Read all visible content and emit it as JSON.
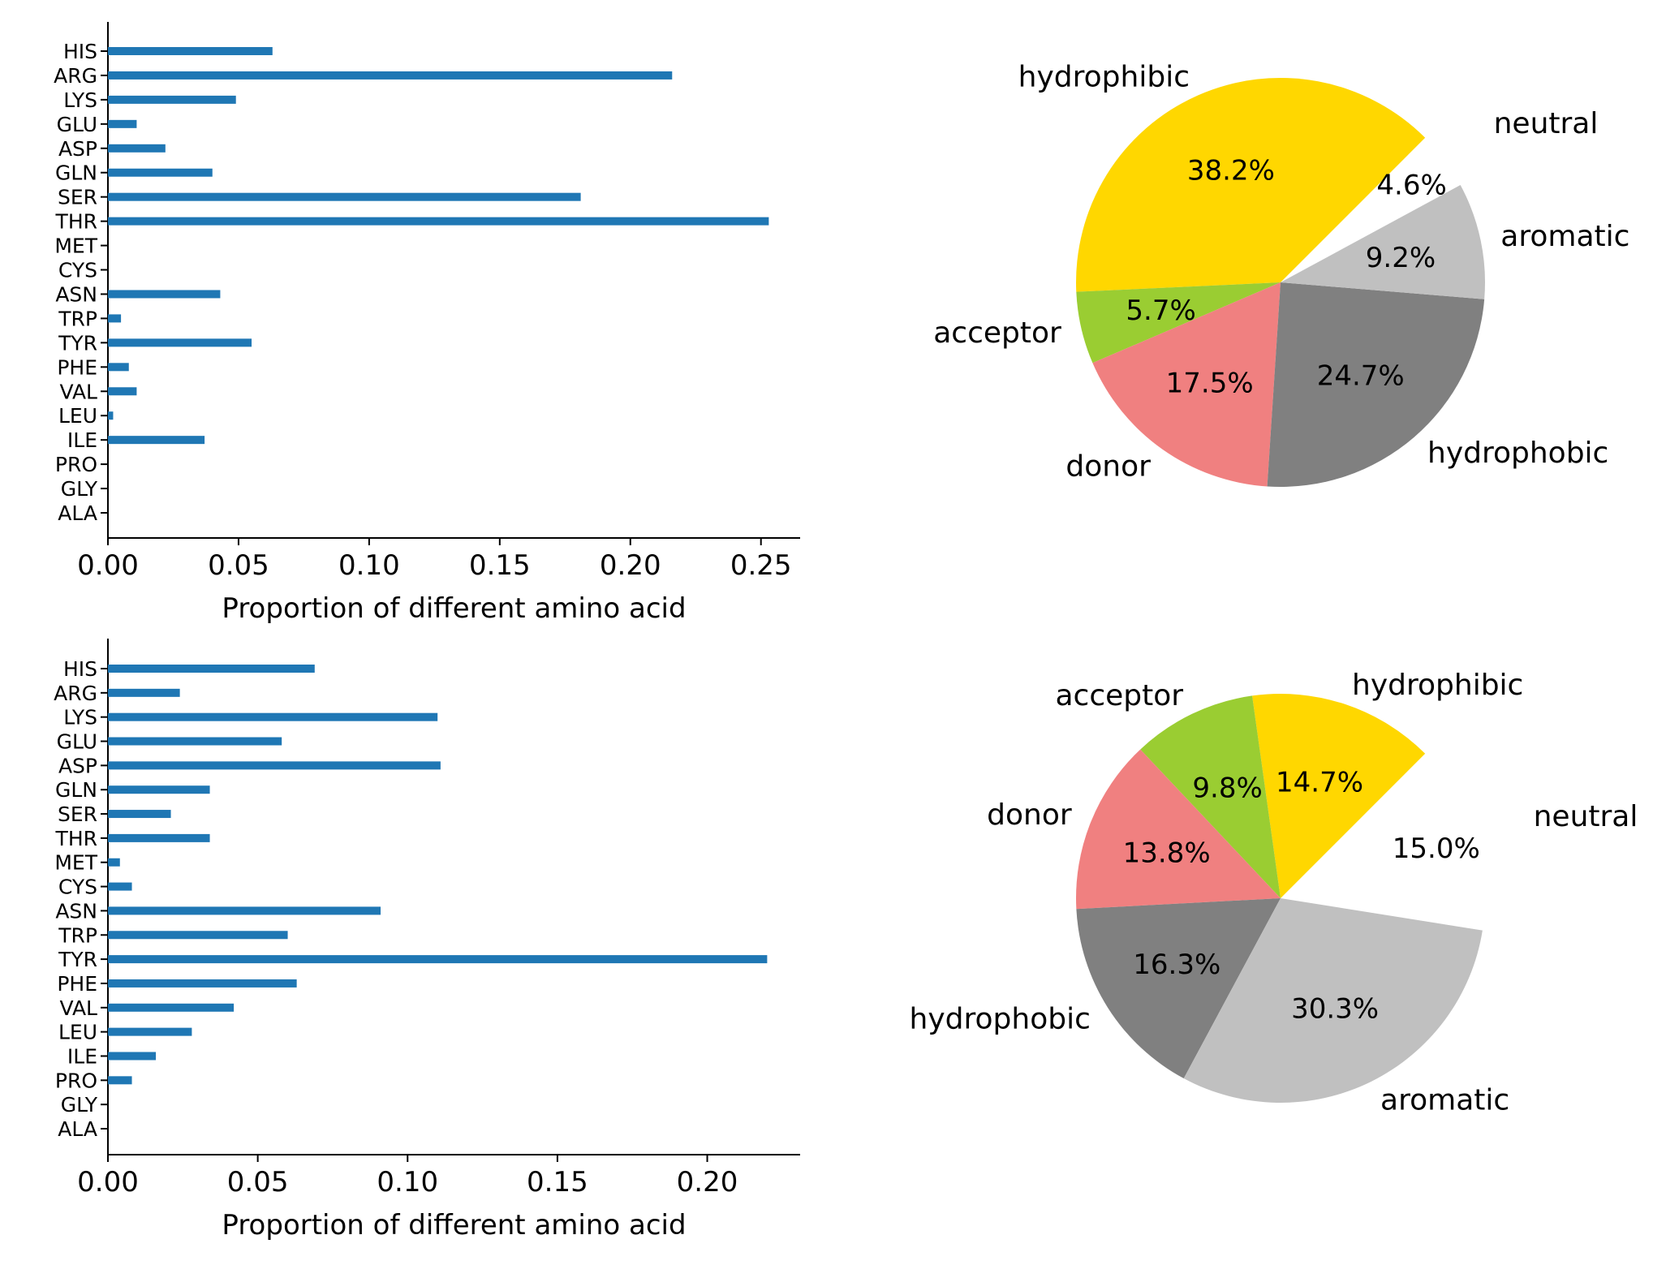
{
  "chart_data": [
    {
      "type": "bar",
      "orientation": "horizontal",
      "categories": [
        "HIS",
        "ARG",
        "LYS",
        "GLU",
        "ASP",
        "GLN",
        "SER",
        "THR",
        "MET",
        "CYS",
        "ASN",
        "TRP",
        "TYR",
        "PHE",
        "VAL",
        "LEU",
        "ILE",
        "PRO",
        "GLY",
        "ALA"
      ],
      "values": [
        0.063,
        0.216,
        0.049,
        0.011,
        0.022,
        0.04,
        0.181,
        0.253,
        0.0,
        0.0,
        0.043,
        0.005,
        0.055,
        0.008,
        0.011,
        0.002,
        0.037,
        0.0,
        0.0,
        0.0
      ],
      "xlabel": "Proportion of different amino acid",
      "xlim": [
        0,
        0.265
      ],
      "xticks": [
        "0.00",
        "0.05",
        "0.10",
        "0.15",
        "0.20",
        "0.25"
      ],
      "xtick_values": [
        0,
        0.05,
        0.1,
        0.15,
        0.2,
        0.25
      ],
      "color": "#1f77b4"
    },
    {
      "type": "pie",
      "slices": [
        {
          "label": "hydrophibic",
          "pct": "38.2%",
          "value": 38.2,
          "color": "#FFD700"
        },
        {
          "label": "acceptor",
          "pct": "5.7%",
          "value": 5.7,
          "color": "#9ACD32"
        },
        {
          "label": "donor",
          "pct": "17.5%",
          "value": 17.5,
          "color": "#F08080"
        },
        {
          "label": "hydrophobic",
          "pct": "24.7%",
          "value": 24.7,
          "color": "#808080"
        },
        {
          "label": "aromatic",
          "pct": "9.2%",
          "value": 9.2,
          "color": "#C0C0C0"
        },
        {
          "label": "neutral",
          "pct": "4.6%",
          "value": 4.6,
          "color": "#ffffff"
        }
      ]
    },
    {
      "type": "bar",
      "orientation": "horizontal",
      "categories": [
        "HIS",
        "ARG",
        "LYS",
        "GLU",
        "ASP",
        "GLN",
        "SER",
        "THR",
        "MET",
        "CYS",
        "ASN",
        "TRP",
        "TYR",
        "PHE",
        "VAL",
        "LEU",
        "ILE",
        "PRO",
        "GLY",
        "ALA"
      ],
      "values": [
        0.069,
        0.024,
        0.11,
        0.058,
        0.111,
        0.034,
        0.021,
        0.034,
        0.004,
        0.008,
        0.091,
        0.06,
        0.22,
        0.063,
        0.042,
        0.028,
        0.016,
        0.008,
        0.0,
        0.0
      ],
      "xlabel": "Proportion of different amino acid",
      "xlim": [
        0,
        0.231
      ],
      "xticks": [
        "0.00",
        "0.05",
        "0.10",
        "0.15",
        "0.20"
      ],
      "xtick_values": [
        0,
        0.05,
        0.1,
        0.15,
        0.2
      ],
      "color": "#1f77b4"
    },
    {
      "type": "pie",
      "slices": [
        {
          "label": "hydrophibic",
          "pct": "14.7%",
          "value": 14.7,
          "color": "#FFD700"
        },
        {
          "label": "acceptor",
          "pct": "9.8%",
          "value": 9.8,
          "color": "#9ACD32"
        },
        {
          "label": "donor",
          "pct": "13.8%",
          "value": 13.8,
          "color": "#F08080"
        },
        {
          "label": "hydrophobic",
          "pct": "16.3%",
          "value": 16.3,
          "color": "#808080"
        },
        {
          "label": "aromatic",
          "pct": "30.3%",
          "value": 30.3,
          "color": "#C0C0C0"
        },
        {
          "label": "neutral",
          "pct": "15.0%",
          "value": 15.0,
          "color": "#ffffff"
        }
      ]
    }
  ]
}
